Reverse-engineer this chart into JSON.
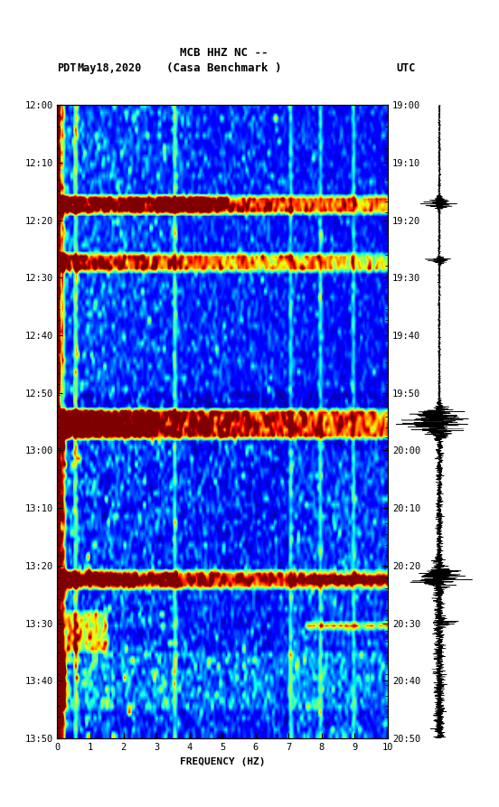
{
  "title_line1": "MCB HHZ NC --",
  "title_line2": "(Casa Benchmark )",
  "left_label": "PDT",
  "right_label": "UTC",
  "date_label": "May18,2020",
  "xlabel": "FREQUENCY (HZ)",
  "freq_min": 0,
  "freq_max": 10,
  "freq_ticks": [
    0,
    1,
    2,
    3,
    4,
    5,
    6,
    7,
    8,
    9,
    10
  ],
  "time_labels_left": [
    "12:00",
    "12:10",
    "12:20",
    "12:30",
    "12:40",
    "12:50",
    "13:00",
    "13:10",
    "13:20",
    "13:30",
    "13:40",
    "13:50"
  ],
  "time_labels_right": [
    "19:00",
    "19:10",
    "19:20",
    "19:30",
    "19:40",
    "19:50",
    "20:00",
    "20:10",
    "20:20",
    "20:30",
    "20:40",
    "20:50"
  ],
  "n_time": 110,
  "n_freq": 200,
  "background_color": "#ffffff",
  "spectrogram_cmap": "jet",
  "seed": 42,
  "fig_width": 5.52,
  "fig_height": 8.93,
  "dpi": 100
}
